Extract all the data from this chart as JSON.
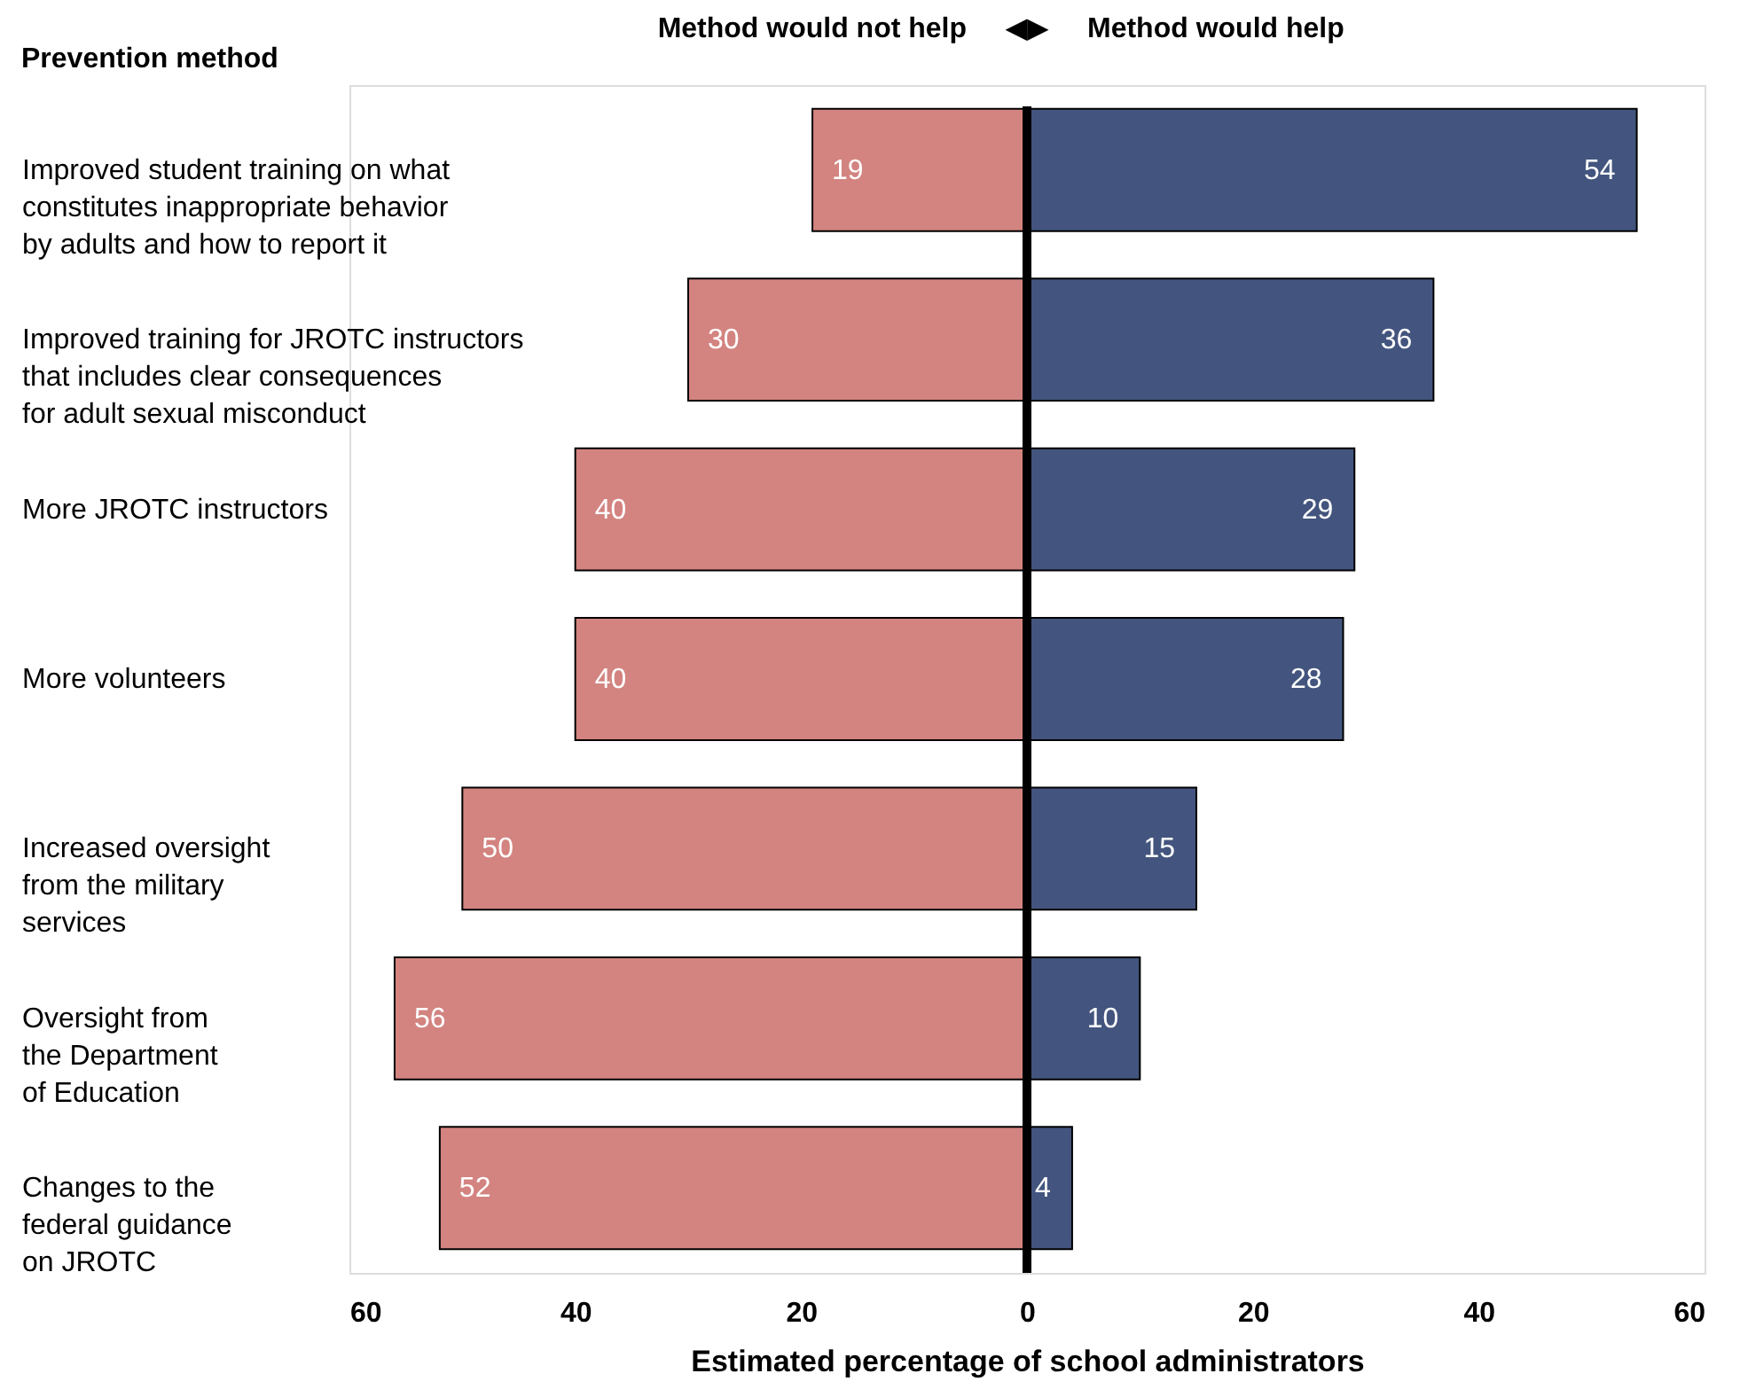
{
  "chart_data": {
    "type": "bar",
    "orientation": "horizontal",
    "xlabel": "Estimated percentage of school administrators",
    "ylabel": "Prevention method",
    "annotations": [
      "◀▶"
    ],
    "categories": [
      "Improved student training on what\nconstitutes inappropriate behavior\nby adults and how to report it",
      "Improved training for JROTC instructors\nthat includes clear consequences\nfor adult sexual misconduct",
      "More JROTC instructors",
      "More volunteers",
      "Increased oversight\nfrom the military\nservices",
      "Oversight from\nthe Department\nof Education",
      "Changes to the\nfederal guidance\non JROTC"
    ],
    "series": [
      {
        "name": "Method would not help",
        "color": "#d38480",
        "values": [
          19,
          30,
          40,
          40,
          50,
          56,
          52
        ],
        "base": [
          -19,
          -30,
          -40,
          -40,
          -50,
          -56,
          -52
        ],
        "value_labels": [
          "19",
          "30",
          "40",
          "40",
          "50",
          "56",
          "52"
        ]
      },
      {
        "name": "Method would help",
        "color": "#43557e",
        "values": [
          54,
          36,
          29,
          28,
          15,
          10,
          4
        ],
        "value_labels": [
          "54",
          "36",
          "29",
          "28",
          "15",
          "10",
          "4"
        ]
      }
    ],
    "xlim": [
      -60,
      60
    ],
    "xticks": [
      {
        "value": -60,
        "label": "60"
      },
      {
        "value": -40,
        "label": "40"
      },
      {
        "value": -20,
        "label": "20"
      },
      0,
      20,
      40,
      60
    ],
    "ref_lines": [
      {
        "axis": "x",
        "value": 0,
        "color": "#000000"
      }
    ],
    "legend": "top",
    "grid": false
  }
}
